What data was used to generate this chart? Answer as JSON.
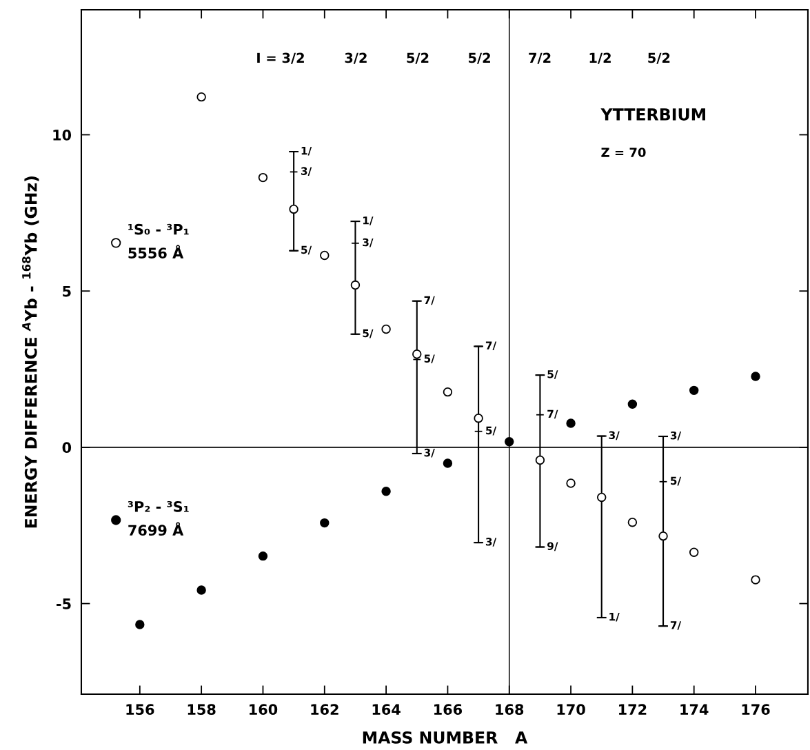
{
  "chart_data": {
    "type": "scatter",
    "xlabel": "MASS NUMBER   A",
    "ylabel": "ENERGY DIFFERENCE $^{A}$Yb - $^{168}$Yb (GHz)",
    "legend": "left",
    "xlim": [
      154.1,
      177.7
    ],
    "ylim": [
      -7.9,
      14
    ],
    "xticks": [
      156,
      158,
      160,
      162,
      164,
      166,
      168,
      170,
      172,
      174,
      176
    ],
    "yticks": [
      -5,
      0,
      5,
      10
    ],
    "grid": false,
    "marker": "circle",
    "series": [
      {
        "name": "¹S₀ - ³P₁\n5556 Å",
        "color": "#ffffff",
        "x": [
          158,
          160,
          161,
          162,
          163,
          164,
          165,
          166,
          167,
          169,
          170,
          171,
          172,
          173,
          174,
          176
        ],
        "values": [
          11.21,
          8.63,
          7.62,
          6.14,
          5.19,
          3.78,
          2.98,
          1.77,
          0.93,
          -0.41,
          -1.15,
          -1.6,
          -2.4,
          -2.84,
          -3.36,
          -4.24
        ],
        "errors": [
          null,
          null,
          [
            6.29,
            9.46
          ],
          null,
          [
            3.62,
            7.23
          ],
          null,
          [
            -0.2,
            4.68
          ],
          null,
          [
            -3.05,
            3.23
          ],
          [
            -3.19,
            2.31
          ],
          null,
          [
            -5.45,
            0.36
          ],
          null,
          [
            -5.72,
            0.35
          ],
          null,
          null
        ]
      },
      {
        "name": "³P₂ - ³S₁\n7699 Å",
        "color": "#000000",
        "x": [
          156,
          158,
          160,
          162,
          164,
          166,
          168,
          170,
          172,
          174,
          176
        ],
        "values": [
          -5.67,
          -4.57,
          -3.48,
          -2.42,
          -1.41,
          -0.51,
          0.18,
          0.77,
          1.38,
          1.82,
          2.27
        ]
      }
    ],
    "ref_lines": [
      {
        "axis": "y",
        "value": 0,
        "color": "#000000"
      },
      {
        "axis": "x",
        "value": 168,
        "color": "#000000"
      }
    ],
    "annotations": [
      "I = 3/2",
      "3/2",
      "5/2",
      "5/2",
      "7/2",
      "1/2",
      "5/2",
      "YTTERBIUM",
      "Z = 70",
      {
        "text": "1/",
        "x": 161,
        "y": 9.46
      },
      {
        "text": "3/",
        "x": 161,
        "y": 8.81
      },
      {
        "text": "5/",
        "x": 161,
        "y": 6.29
      },
      {
        "text": "1/",
        "x": 163,
        "y": 7.23
      },
      {
        "text": "3/",
        "x": 163,
        "y": 6.53
      },
      {
        "text": "5/",
        "x": 163,
        "y": 3.62
      },
      {
        "text": "7/",
        "x": 165,
        "y": 4.68
      },
      {
        "text": "5/",
        "x": 165,
        "y": 2.81
      },
      {
        "text": "3/",
        "x": 165,
        "y": -0.2
      },
      {
        "text": "7/",
        "x": 167,
        "y": 3.23
      },
      {
        "text": "5/",
        "x": 167,
        "y": 0.51
      },
      {
        "text": "3/",
        "x": 167,
        "y": -3.05
      },
      {
        "text": "5/",
        "x": 169,
        "y": 2.31
      },
      {
        "text": "7/",
        "x": 169,
        "y": 1.04
      },
      {
        "text": "9/",
        "x": 169,
        "y": -3.19
      },
      {
        "text": "3/",
        "x": 171,
        "y": 0.36
      },
      {
        "text": "1/",
        "x": 171,
        "y": -5.45
      },
      {
        "text": "3/",
        "x": 173,
        "y": 0.35
      },
      {
        "text": "5/",
        "x": 173,
        "y": -1.1
      },
      {
        "text": "7/",
        "x": 173,
        "y": -5.72
      }
    ]
  }
}
